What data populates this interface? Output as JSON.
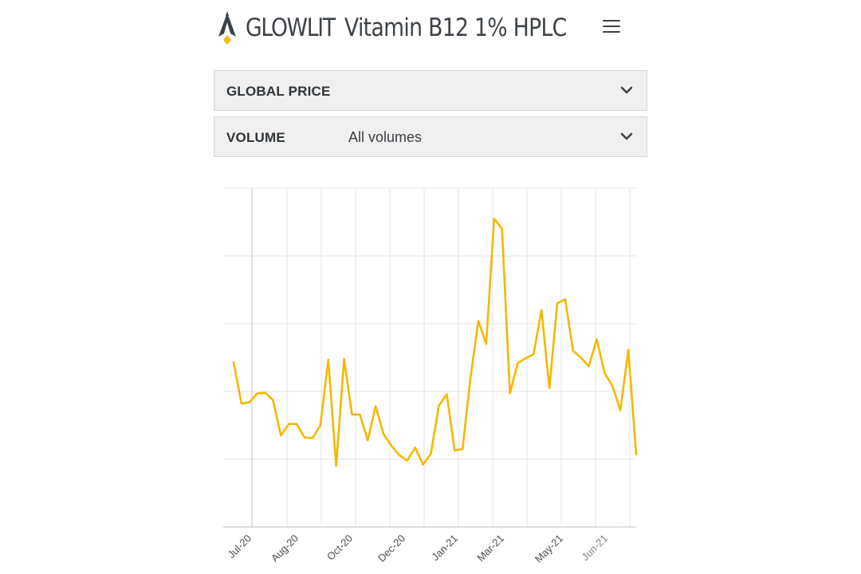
{
  "header": {
    "brand": "GLOWLIT",
    "title": "Vitamin B12 1% HPLC",
    "logo_icon": "rocket-logo-icon",
    "menu_icon": "hamburger-menu-icon"
  },
  "filters": {
    "global_price": {
      "label": "GLOBAL PRICE",
      "value": "",
      "icon": "chevron-down-icon"
    },
    "volume": {
      "label": "VOLUME",
      "value": "All volumes",
      "icon": "chevron-down-icon"
    }
  },
  "colors": {
    "line": "#f5b800",
    "grid": "#e3e3e3",
    "text": "#3d4348",
    "logo_dark": "#3d4348",
    "logo_accent": "#f5b800",
    "dropdown_bg": "#f0f0f0"
  },
  "chart_data": {
    "type": "line",
    "title": "",
    "xlabel": "",
    "ylabel": "",
    "ylim": [
      0,
      5
    ],
    "y_tick_labels_shown": false,
    "grid": true,
    "x_tick_labels": [
      "Jul-20",
      "Aug-20",
      "Oct-20",
      "Dec-20",
      "Jan-21",
      "Mar-21",
      "May-21",
      "Jun-21"
    ],
    "series": [
      {
        "name": "Vitamin B12 1% HPLC",
        "values": [
          2.43,
          1.82,
          1.84,
          1.97,
          1.98,
          1.87,
          1.35,
          1.52,
          1.52,
          1.32,
          1.31,
          1.5,
          2.47,
          0.9,
          2.48,
          1.66,
          1.66,
          1.28,
          1.78,
          1.37,
          1.2,
          1.06,
          0.98,
          1.17,
          0.92,
          1.08,
          1.79,
          1.96,
          1.13,
          1.15,
          2.2,
          3.04,
          2.7,
          4.55,
          4.4,
          1.97,
          2.42,
          2.49,
          2.55,
          3.2,
          2.05,
          3.3,
          3.36,
          2.6,
          2.5,
          2.37,
          2.77,
          2.27,
          2.08,
          1.72,
          2.61,
          1.07
        ]
      }
    ]
  }
}
